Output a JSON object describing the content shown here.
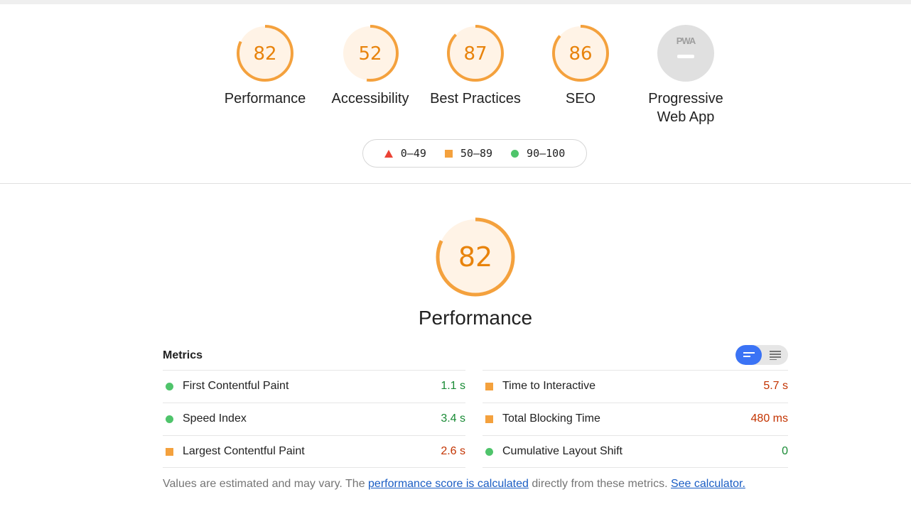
{
  "categories": [
    {
      "label": "Performance",
      "score": "82",
      "fraction": 0.82,
      "type": "score"
    },
    {
      "label": "Accessibility",
      "score": "52",
      "fraction": 0.52,
      "type": "score"
    },
    {
      "label": "Best Practices",
      "score": "87",
      "fraction": 0.87,
      "type": "score"
    },
    {
      "label": "SEO",
      "score": "86",
      "fraction": 0.86,
      "type": "score"
    },
    {
      "label": "Progressive Web App",
      "label_line1": "Progressive",
      "label_line2": "Web App",
      "badge": "PWA",
      "type": "pwa"
    }
  ],
  "legend": [
    {
      "marker": "triangle",
      "range": "0–49",
      "color": "#eb4335"
    },
    {
      "marker": "square",
      "range": "50–89",
      "color": "#f4a13d"
    },
    {
      "marker": "circle",
      "range": "90–100",
      "color": "#4fc46b"
    }
  ],
  "main": {
    "score": "82",
    "fraction": 0.82,
    "title": "Performance"
  },
  "metrics": {
    "title": "Metrics",
    "toggle": {
      "icons": [
        "compact-view-icon",
        "expanded-view-icon"
      ],
      "active": 0
    },
    "left": [
      {
        "name": "First Contentful Paint",
        "value": "1.1 s",
        "rating": "pass"
      },
      {
        "name": "Speed Index",
        "value": "3.4 s",
        "rating": "pass"
      },
      {
        "name": "Largest Contentful Paint",
        "value": "2.6 s",
        "rating": "average"
      }
    ],
    "right": [
      {
        "name": "Time to Interactive",
        "value": "5.7 s",
        "rating": "average"
      },
      {
        "name": "Total Blocking Time",
        "value": "480 ms",
        "rating": "average"
      },
      {
        "name": "Cumulative Layout Shift",
        "value": "0",
        "rating": "pass"
      }
    ]
  },
  "footer": {
    "text_before": "Values are estimated and may vary. The ",
    "link1": "performance score is calculated",
    "text_middle": " directly from these metrics. ",
    "link2": "See calculator."
  },
  "colors": {
    "orange": "#f4a13d",
    "orange_bg": "#fff3e6",
    "green": "#4fc46b",
    "red": "#eb4335",
    "grey": "#e0e0e0",
    "blue": "#3b73f5"
  }
}
